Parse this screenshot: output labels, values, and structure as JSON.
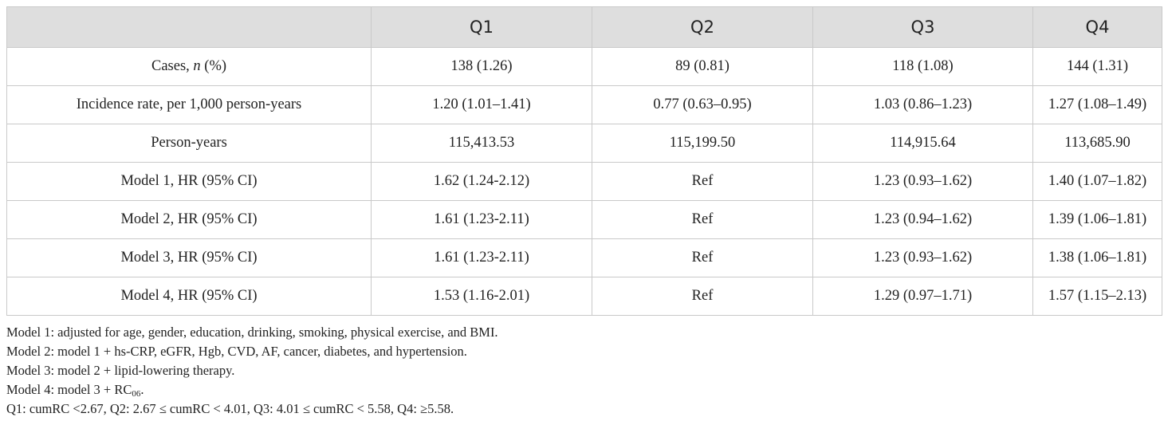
{
  "table": {
    "header": [
      "",
      "Q1",
      "Q2",
      "Q3",
      "Q4"
    ],
    "rows": [
      {
        "label_pre": "Cases, ",
        "label_em": "n",
        "label_post": " (%)",
        "cells": [
          "138 (1.26)",
          "89 (0.81)",
          "118 (1.08)",
          "144 (1.31)"
        ]
      },
      {
        "label_pre": "Incidence rate, per 1,000 person-years",
        "label_em": "",
        "label_post": "",
        "cells": [
          "1.20 (1.01–1.41)",
          "0.77 (0.63–0.95)",
          "1.03 (0.86–1.23)",
          "1.27 (1.08–1.49)"
        ]
      },
      {
        "label_pre": "Person-years",
        "label_em": "",
        "label_post": "",
        "cells": [
          "115,413.53",
          "115,199.50",
          "114,915.64",
          "113,685.90"
        ]
      },
      {
        "label_pre": "Model 1, HR (95% CI)",
        "label_em": "",
        "label_post": "",
        "cells": [
          "1.62 (1.24-2.12)",
          "Ref",
          "1.23 (0.93–1.62)",
          "1.40 (1.07–1.82)"
        ]
      },
      {
        "label_pre": "Model 2, HR (95% CI)",
        "label_em": "",
        "label_post": "",
        "cells": [
          "1.61 (1.23-2.11)",
          "Ref",
          "1.23 (0.94–1.62)",
          "1.39 (1.06–1.81)"
        ]
      },
      {
        "label_pre": "Model 3, HR (95% CI)",
        "label_em": "",
        "label_post": "",
        "cells": [
          "1.61 (1.23-2.11)",
          "Ref",
          "1.23 (0.93–1.62)",
          "1.38 (1.06–1.81)"
        ]
      },
      {
        "label_pre": "Model 4, HR (95% CI)",
        "label_em": "",
        "label_post": "",
        "cells": [
          "1.53 (1.16-2.01)",
          "Ref",
          "1.29 (0.97–1.71)",
          "1.57 (1.15–2.13)"
        ]
      }
    ]
  },
  "notes": {
    "note1": "Model 1: adjusted for age, gender, education, drinking, smoking, physical exercise, and BMI.",
    "note2": "Model 2: model 1 + hs-CRP, eGFR, Hgb, CVD, AF, cancer, diabetes, and hypertension.",
    "note3": "Model 3: model 2 + lipid-lowering therapy.",
    "note4_pre": "Model 4: model 3 + RC",
    "note4_sub": "06",
    "note4_post": ".",
    "note5": "Q1: cumRC <2.67, Q2: 2.67 ≤ cumRC < 4.01, Q3: 4.01 ≤ cumRC < 5.58, Q4: ≥5.58."
  }
}
